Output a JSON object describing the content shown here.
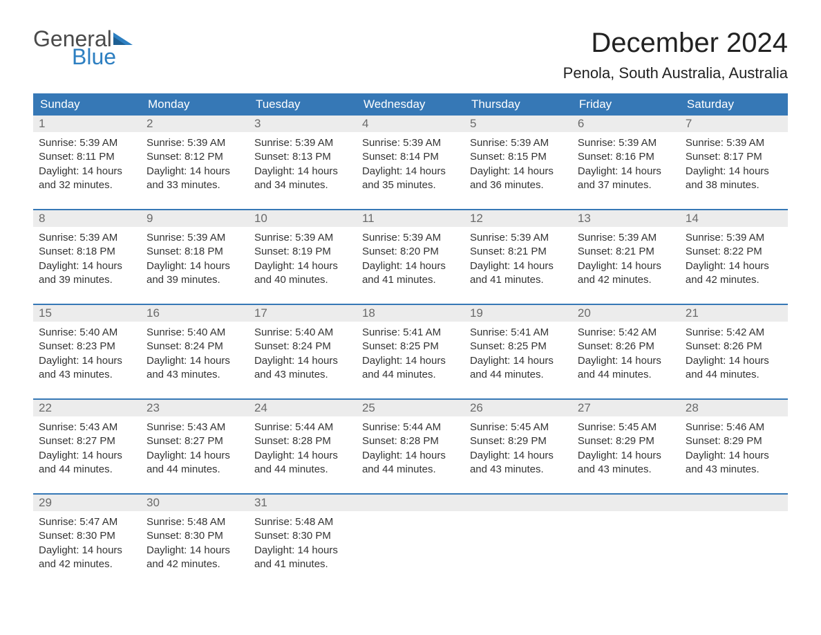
{
  "logo": {
    "word1": "General",
    "word2": "Blue",
    "shape_color": "#2d7fc1",
    "word1_color": "#4a4a4a"
  },
  "title": "December 2024",
  "location": "Penola, South Australia, Australia",
  "colors": {
    "header_bg": "#3678b6",
    "header_text": "#ffffff",
    "daynum_bg": "#ececec",
    "daynum_text": "#6a6a6a",
    "body_text": "#333333",
    "rule": "#3678b6",
    "page_bg": "#ffffff"
  },
  "fonts": {
    "title_size": 40,
    "location_size": 22,
    "dow_size": 17,
    "daynum_size": 17,
    "detail_size": 15
  },
  "days_of_week": [
    "Sunday",
    "Monday",
    "Tuesday",
    "Wednesday",
    "Thursday",
    "Friday",
    "Saturday"
  ],
  "weeks": [
    [
      {
        "n": "1",
        "sunrise": "5:39 AM",
        "sunset": "8:11 PM",
        "daylight": "14 hours and 32 minutes."
      },
      {
        "n": "2",
        "sunrise": "5:39 AM",
        "sunset": "8:12 PM",
        "daylight": "14 hours and 33 minutes."
      },
      {
        "n": "3",
        "sunrise": "5:39 AM",
        "sunset": "8:13 PM",
        "daylight": "14 hours and 34 minutes."
      },
      {
        "n": "4",
        "sunrise": "5:39 AM",
        "sunset": "8:14 PM",
        "daylight": "14 hours and 35 minutes."
      },
      {
        "n": "5",
        "sunrise": "5:39 AM",
        "sunset": "8:15 PM",
        "daylight": "14 hours and 36 minutes."
      },
      {
        "n": "6",
        "sunrise": "5:39 AM",
        "sunset": "8:16 PM",
        "daylight": "14 hours and 37 minutes."
      },
      {
        "n": "7",
        "sunrise": "5:39 AM",
        "sunset": "8:17 PM",
        "daylight": "14 hours and 38 minutes."
      }
    ],
    [
      {
        "n": "8",
        "sunrise": "5:39 AM",
        "sunset": "8:18 PM",
        "daylight": "14 hours and 39 minutes."
      },
      {
        "n": "9",
        "sunrise": "5:39 AM",
        "sunset": "8:18 PM",
        "daylight": "14 hours and 39 minutes."
      },
      {
        "n": "10",
        "sunrise": "5:39 AM",
        "sunset": "8:19 PM",
        "daylight": "14 hours and 40 minutes."
      },
      {
        "n": "11",
        "sunrise": "5:39 AM",
        "sunset": "8:20 PM",
        "daylight": "14 hours and 41 minutes."
      },
      {
        "n": "12",
        "sunrise": "5:39 AM",
        "sunset": "8:21 PM",
        "daylight": "14 hours and 41 minutes."
      },
      {
        "n": "13",
        "sunrise": "5:39 AM",
        "sunset": "8:21 PM",
        "daylight": "14 hours and 42 minutes."
      },
      {
        "n": "14",
        "sunrise": "5:39 AM",
        "sunset": "8:22 PM",
        "daylight": "14 hours and 42 minutes."
      }
    ],
    [
      {
        "n": "15",
        "sunrise": "5:40 AM",
        "sunset": "8:23 PM",
        "daylight": "14 hours and 43 minutes."
      },
      {
        "n": "16",
        "sunrise": "5:40 AM",
        "sunset": "8:24 PM",
        "daylight": "14 hours and 43 minutes."
      },
      {
        "n": "17",
        "sunrise": "5:40 AM",
        "sunset": "8:24 PM",
        "daylight": "14 hours and 43 minutes."
      },
      {
        "n": "18",
        "sunrise": "5:41 AM",
        "sunset": "8:25 PM",
        "daylight": "14 hours and 44 minutes."
      },
      {
        "n": "19",
        "sunrise": "5:41 AM",
        "sunset": "8:25 PM",
        "daylight": "14 hours and 44 minutes."
      },
      {
        "n": "20",
        "sunrise": "5:42 AM",
        "sunset": "8:26 PM",
        "daylight": "14 hours and 44 minutes."
      },
      {
        "n": "21",
        "sunrise": "5:42 AM",
        "sunset": "8:26 PM",
        "daylight": "14 hours and 44 minutes."
      }
    ],
    [
      {
        "n": "22",
        "sunrise": "5:43 AM",
        "sunset": "8:27 PM",
        "daylight": "14 hours and 44 minutes."
      },
      {
        "n": "23",
        "sunrise": "5:43 AM",
        "sunset": "8:27 PM",
        "daylight": "14 hours and 44 minutes."
      },
      {
        "n": "24",
        "sunrise": "5:44 AM",
        "sunset": "8:28 PM",
        "daylight": "14 hours and 44 minutes."
      },
      {
        "n": "25",
        "sunrise": "5:44 AM",
        "sunset": "8:28 PM",
        "daylight": "14 hours and 44 minutes."
      },
      {
        "n": "26",
        "sunrise": "5:45 AM",
        "sunset": "8:29 PM",
        "daylight": "14 hours and 43 minutes."
      },
      {
        "n": "27",
        "sunrise": "5:45 AM",
        "sunset": "8:29 PM",
        "daylight": "14 hours and 43 minutes."
      },
      {
        "n": "28",
        "sunrise": "5:46 AM",
        "sunset": "8:29 PM",
        "daylight": "14 hours and 43 minutes."
      }
    ],
    [
      {
        "n": "29",
        "sunrise": "5:47 AM",
        "sunset": "8:30 PM",
        "daylight": "14 hours and 42 minutes."
      },
      {
        "n": "30",
        "sunrise": "5:48 AM",
        "sunset": "8:30 PM",
        "daylight": "14 hours and 42 minutes."
      },
      {
        "n": "31",
        "sunrise": "5:48 AM",
        "sunset": "8:30 PM",
        "daylight": "14 hours and 41 minutes."
      },
      null,
      null,
      null,
      null
    ]
  ],
  "labels": {
    "sunrise": "Sunrise: ",
    "sunset": "Sunset: ",
    "daylight": "Daylight: "
  }
}
